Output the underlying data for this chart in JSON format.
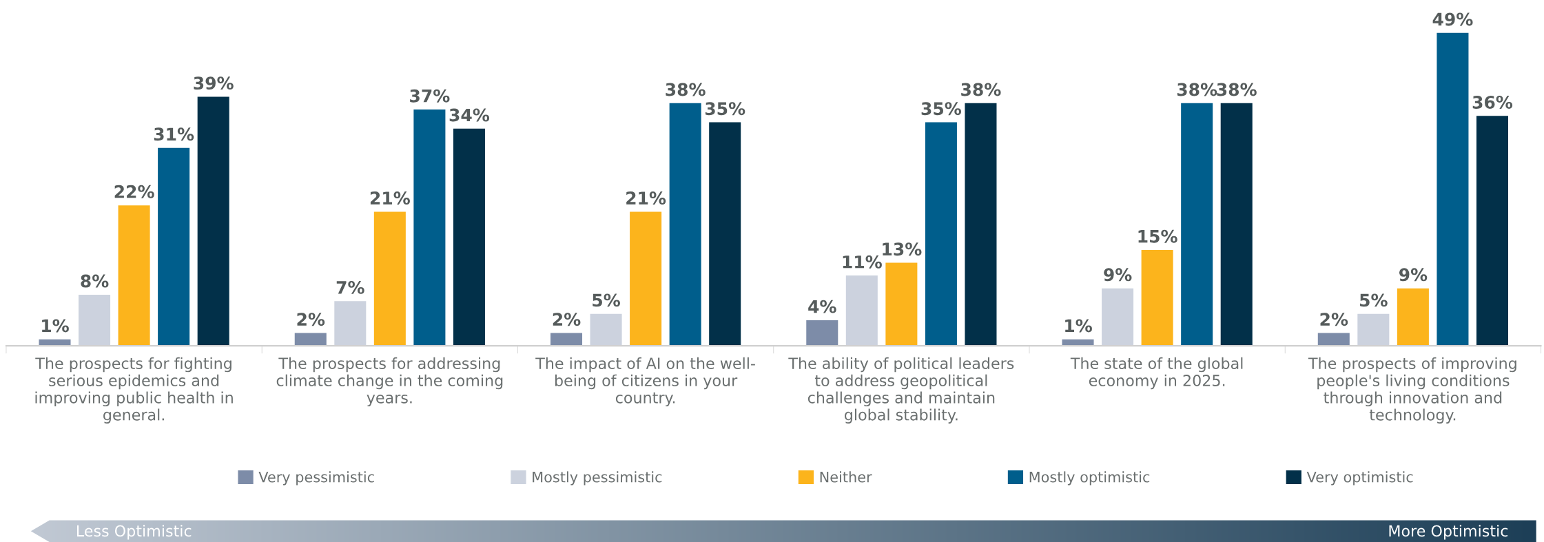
{
  "chart_data": {
    "type": "bar",
    "categories": [
      "The prospects for fighting\nserious epidemics and\nimproving public health in\ngeneral.",
      "The prospects for addressing\nclimate change in the coming\nyears.",
      "The impact of AI on the well-\nbeing of citizens in your\ncountry.",
      "The ability of political leaders\nto address geopolitical\nchallenges and maintain\nglobal stability.",
      "The state of the global\neconomy in 2025.",
      "The prospects of improving\npeople's living conditions\nthrough innovation and\ntechnology."
    ],
    "series": [
      {
        "name": "Very pessimistic",
        "color": "#7d8ca8",
        "values": [
          1,
          2,
          2,
          4,
          1,
          2
        ],
        "value_labels": [
          "1%",
          "2%",
          "2%",
          "4%",
          "1%",
          "2%"
        ]
      },
      {
        "name": "Mostly pessimistic",
        "color": "#ccd2de",
        "values": [
          8,
          7,
          5,
          11,
          9,
          5
        ],
        "value_labels": [
          "8%",
          "7%",
          "5%",
          "11%",
          "9%",
          "5%"
        ]
      },
      {
        "name": "Neither",
        "color": "#fcb41c",
        "values": [
          22,
          21,
          21,
          13,
          15,
          9
        ],
        "value_labels": [
          "22%",
          "21%",
          "21%",
          "13%",
          "15%",
          "9%"
        ]
      },
      {
        "name": "Mostly optimistic",
        "color": "#005e8c",
        "values": [
          31,
          37,
          38,
          35,
          38,
          49
        ],
        "value_labels": [
          "31%",
          "37%",
          "38%",
          "35%",
          "38%",
          "49%"
        ]
      },
      {
        "name": "Very optimistic",
        "color": "#023049",
        "values": [
          39,
          34,
          35,
          38,
          38,
          36
        ],
        "value_labels": [
          "39%",
          "34%",
          "35%",
          "38%",
          "38%",
          "36%"
        ]
      }
    ],
    "tick_labels": "x",
    "grid": false,
    "legend": "bottom",
    "annotations": [
      "Less Optimistic",
      "More Optimistic"
    ]
  }
}
